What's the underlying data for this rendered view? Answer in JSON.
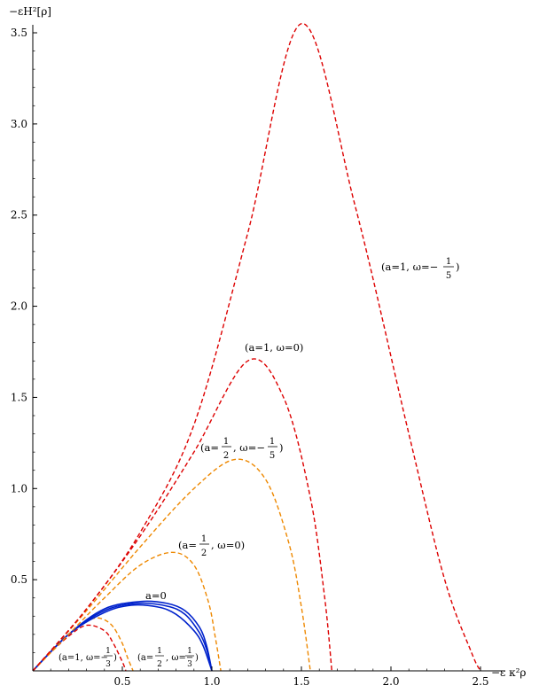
{
  "chart_data": {
    "type": "line",
    "xlabel": "−ε κ²ρ",
    "ylabel": "−εH²[ρ]",
    "xlim": [
      0,
      2.5
    ],
    "ylim": [
      0,
      3.6
    ],
    "xticks": [
      0.5,
      1.0,
      1.5,
      2.0,
      2.5
    ],
    "xtick_labels": [
      "0.5",
      "1.0",
      "1.5",
      "2.0",
      "2.5"
    ],
    "yticks": [
      0.5,
      1.0,
      1.5,
      2.0,
      2.5,
      3.0,
      3.5
    ],
    "ytick_labels": [
      "0.5",
      "1.0",
      "1.5",
      "2.0",
      "2.5",
      "3.0",
      "3.5"
    ],
    "grid": false,
    "series": [
      {
        "color": "#dd0000",
        "dash": true,
        "x": [
          0,
          0.1,
          0.2,
          0.3,
          0.4,
          0.45,
          0.5,
          0.52
        ],
        "y": [
          0,
          0.1,
          0.19,
          0.25,
          0.22,
          0.15,
          0.05,
          0
        ]
      },
      {
        "color": "#ee8800",
        "dash": true,
        "x": [
          0,
          0.1,
          0.2,
          0.3,
          0.35,
          0.4,
          0.45,
          0.5,
          0.53,
          0.56
        ],
        "y": [
          0,
          0.1,
          0.2,
          0.27,
          0.29,
          0.28,
          0.24,
          0.15,
          0.07,
          0
        ]
      },
      {
        "color": "#0022cc",
        "dash": false,
        "x": [
          0,
          0.2,
          0.4,
          0.55,
          0.7,
          0.8,
          0.9,
          0.95,
          1.0
        ],
        "y": [
          0,
          0.2,
          0.32,
          0.36,
          0.35,
          0.31,
          0.22,
          0.14,
          0
        ]
      },
      {
        "color": "#0022cc",
        "dash": false,
        "x": [
          0,
          0.2,
          0.4,
          0.58,
          0.75,
          0.85,
          0.93,
          0.97,
          1.0
        ],
        "y": [
          0,
          0.2,
          0.33,
          0.37,
          0.355,
          0.31,
          0.21,
          0.12,
          0
        ]
      },
      {
        "color": "#0022cc",
        "dash": false,
        "x": [
          0,
          0.2,
          0.4,
          0.6,
          0.75,
          0.85,
          0.93,
          0.97,
          1.0
        ],
        "y": [
          0,
          0.2,
          0.34,
          0.38,
          0.37,
          0.33,
          0.24,
          0.14,
          0
        ]
      },
      {
        "color": "#ee8800",
        "dash": true,
        "x": [
          0,
          0.2,
          0.4,
          0.6,
          0.78,
          0.9,
          0.98,
          1.02,
          1.05
        ],
        "y": [
          0,
          0.2,
          0.4,
          0.58,
          0.65,
          0.58,
          0.38,
          0.18,
          0
        ]
      },
      {
        "color": "#ee8800",
        "dash": true,
        "x": [
          0,
          0.3,
          0.6,
          0.9,
          1.13,
          1.3,
          1.43,
          1.5,
          1.55
        ],
        "y": [
          0,
          0.33,
          0.68,
          1.0,
          1.16,
          1.05,
          0.7,
          0.35,
          0
        ]
      },
      {
        "color": "#dd0000",
        "dash": true,
        "x": [
          0,
          0.3,
          0.6,
          0.9,
          1.2,
          1.4,
          1.55,
          1.63,
          1.67
        ],
        "y": [
          0,
          0.34,
          0.74,
          1.2,
          1.7,
          1.5,
          0.95,
          0.4,
          0
        ]
      },
      {
        "color": "#dd0000",
        "dash": true,
        "x": [
          0,
          0.3,
          0.6,
          0.9,
          1.2,
          1.5,
          1.8,
          2.1,
          2.3,
          2.45,
          2.5
        ],
        "y": [
          0,
          0.34,
          0.76,
          1.35,
          2.4,
          3.55,
          2.55,
          1.3,
          0.5,
          0.1,
          0
        ]
      }
    ],
    "annotations": {
      "a1_w_m15": {
        "head": "(a=1, ω=−",
        "num": "1",
        "den": "5",
        "tail": ")"
      },
      "a1_w0": {
        "text": "(a=1, ω=0)"
      },
      "ahalf_w_m15": {
        "head": "(a=",
        "num1": "1",
        "den1": "2",
        "mid": ", ω=−",
        "num2": "1",
        "den2": "5",
        "tail": ")"
      },
      "ahalf_w0": {
        "head": "(a=",
        "num": "1",
        "den": "2",
        "tail": ", ω=0)"
      },
      "a0": {
        "text": "a=0"
      },
      "a1_w_m13": {
        "head": "(a=1, ω=−",
        "num": "1",
        "den": "3",
        "tail": ")"
      },
      "ahalf_w_13": {
        "head": "(a=",
        "num1": "1",
        "den1": "2",
        "mid": ", ω=−",
        "num2": "1",
        "den2": "3",
        "tail": ")"
      }
    }
  }
}
